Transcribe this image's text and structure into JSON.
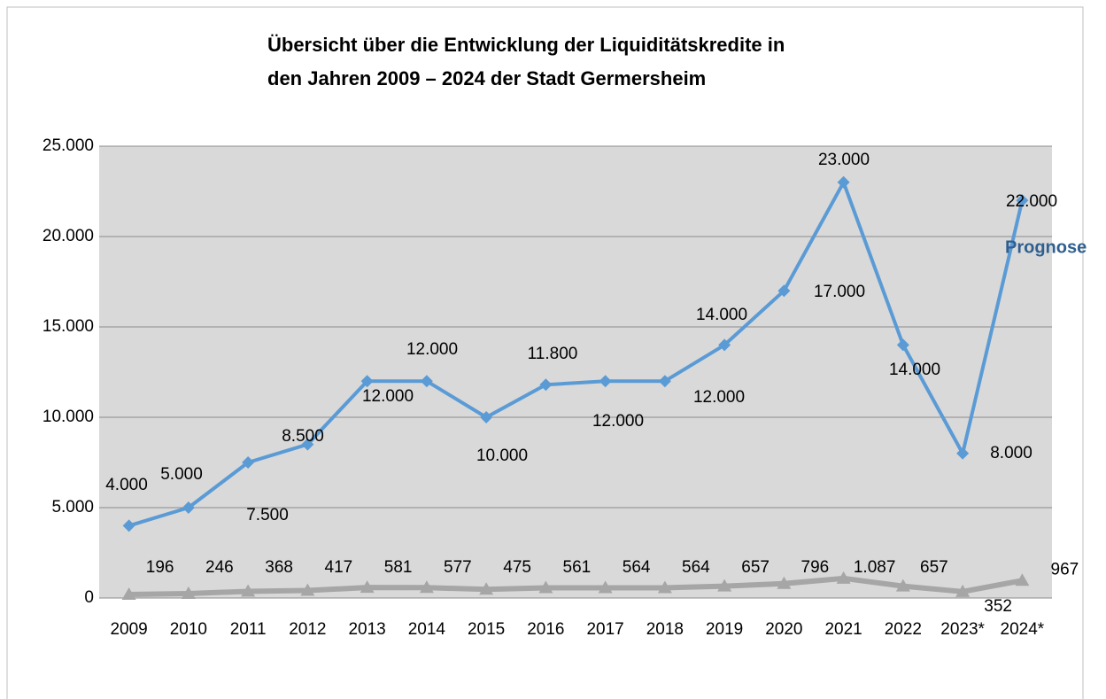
{
  "chart_data": {
    "type": "line",
    "title": [
      "Übersicht über die Entwicklung der Liquiditätskredite in",
      "den Jahren 2009 – 2024 der Stadt Germersheim"
    ],
    "annotation": "Prognose",
    "categories": [
      "2009",
      "2010",
      "2011",
      "2012",
      "2013",
      "2014",
      "2015",
      "2016",
      "2017",
      "2018",
      "2019",
      "2020",
      "2021",
      "2022",
      "2023*",
      "2024*"
    ],
    "series": [
      {
        "color": "#5b9bd5",
        "marker": "diamond",
        "values": [
          4000,
          5000,
          7500,
          8500,
          12000,
          12000,
          10000,
          11800,
          12000,
          12000,
          14000,
          17000,
          23000,
          14000,
          8000,
          22000
        ],
        "value_labels": [
          "4.000",
          "5.000",
          "7.500",
          "8.500",
          "12.000",
          "12.000",
          "10.000",
          "11.800",
          "12.000",
          "12.000",
          "14.000",
          "17.000",
          "23.000",
          "14.000",
          "8.000",
          "22.000"
        ]
      },
      {
        "color": "#a6a6a6",
        "marker": "triangle",
        "values": [
          196,
          246,
          368,
          417,
          581,
          577,
          475,
          561,
          564,
          564,
          657,
          796,
          1087,
          657,
          352,
          967
        ],
        "value_labels": [
          "196",
          "246",
          "368",
          "417",
          "581",
          "577",
          "475",
          "561",
          "564",
          "564",
          "657",
          "796",
          "1.087",
          "657",
          "352",
          "967"
        ]
      }
    ],
    "ylim": [
      0,
      25000
    ],
    "yticks": [
      0,
      {
        "value": 5000,
        "label": "5.000"
      },
      {
        "value": 10000,
        "label": "10.000"
      },
      {
        "value": 15000,
        "label": "15.000"
      },
      {
        "value": 20000,
        "label": "20.000"
      },
      {
        "value": 25000,
        "label": "25.000"
      }
    ],
    "grid": true,
    "plot_background": "#d9d9d9"
  }
}
